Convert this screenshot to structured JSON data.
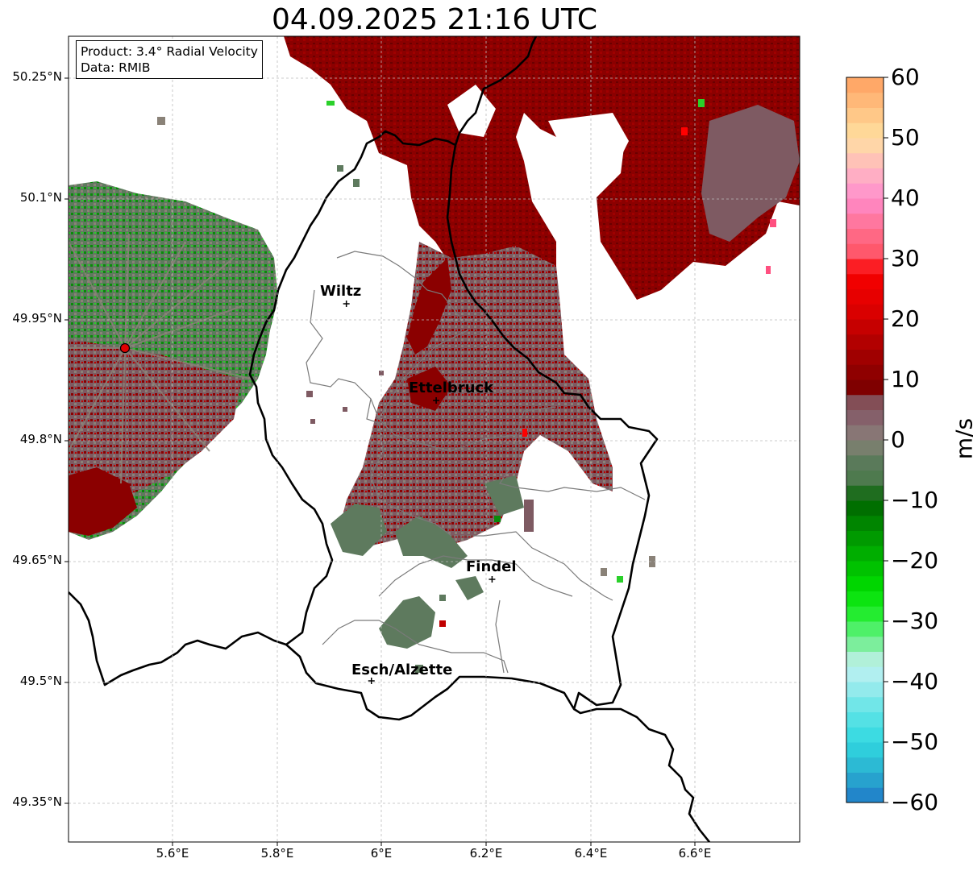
{
  "title": "04.09.2025 21:16 UTC",
  "info": {
    "product": "Product: 3.4° Radial Velocity",
    "source": "Data: RMIB"
  },
  "axes": {
    "lat_ticks": [
      "50.25°N",
      "50.1°N",
      "49.95°N",
      "49.8°N",
      "49.65°N",
      "49.5°N",
      "49.35°N"
    ],
    "lon_ticks": [
      "5.6°E",
      "5.8°E",
      "6°E",
      "6.2°E",
      "6.4°E",
      "6.6°E"
    ],
    "lat_range": [
      49.3,
      50.3
    ],
    "lon_range": [
      5.4,
      6.8
    ],
    "grid": true
  },
  "cities": [
    {
      "name": "Wiltz",
      "lat": 49.968,
      "lon": 5.932
    },
    {
      "name": "Ettelbruck",
      "lat": 49.848,
      "lon": 6.104
    },
    {
      "name": "Findel",
      "lat": 49.626,
      "lon": 6.211
    },
    {
      "name": "Esch/Alzette",
      "lat": 49.5,
      "lon": 5.98
    }
  ],
  "radar_site": {
    "lat": 49.915,
    "lon": 5.505,
    "color": "#e00000"
  },
  "colorbar": {
    "label": "m/s",
    "min": -60,
    "max": 60,
    "ticks": [
      "60",
      "50",
      "40",
      "30",
      "20",
      "10",
      "0",
      "−10",
      "−20",
      "−30",
      "−40",
      "−50",
      "−60"
    ],
    "stops": [
      {
        "v": -60,
        "c": "#1f78c8"
      },
      {
        "v": -55,
        "c": "#2ab0d0"
      },
      {
        "v": -50,
        "c": "#30d8e0"
      },
      {
        "v": -45,
        "c": "#60e4e6"
      },
      {
        "v": -40,
        "c": "#a4ecee"
      },
      {
        "v": -37,
        "c": "#c4f2f2"
      },
      {
        "v": -35,
        "c": "#90ecb0"
      },
      {
        "v": -32,
        "c": "#60f080"
      },
      {
        "v": -30,
        "c": "#30f040"
      },
      {
        "v": -25,
        "c": "#00e000"
      },
      {
        "v": -20,
        "c": "#00b800"
      },
      {
        "v": -15,
        "c": "#009000"
      },
      {
        "v": -10,
        "c": "#006400"
      },
      {
        "v": -7,
        "c": "#4a7a4a"
      },
      {
        "v": -3,
        "c": "#5e7a5e"
      },
      {
        "v": 0,
        "c": "#8a8278"
      },
      {
        "v": 3,
        "c": "#866670"
      },
      {
        "v": 7,
        "c": "#824850"
      },
      {
        "v": 8,
        "c": "#7a0000"
      },
      {
        "v": 15,
        "c": "#a80000"
      },
      {
        "v": 22,
        "c": "#e00000"
      },
      {
        "v": 28,
        "c": "#f80000"
      },
      {
        "v": 30,
        "c": "#ff5060"
      },
      {
        "v": 35,
        "c": "#ff7090"
      },
      {
        "v": 40,
        "c": "#ff8ccc"
      },
      {
        "v": 43,
        "c": "#ffa8c8"
      },
      {
        "v": 46,
        "c": "#ffc0b8"
      },
      {
        "v": 50,
        "c": "#ffe0a0"
      },
      {
        "v": 55,
        "c": "#ffc080"
      },
      {
        "v": 60,
        "c": "#ffa060"
      }
    ]
  },
  "colors": {
    "outbound_strong": "#8b0000",
    "outbound_weak": "#7e5a62",
    "near_zero": "#8a8278",
    "inbound_weak": "#5e7a5e",
    "inbound_strong": "#0a8a0a",
    "border": "#000000",
    "admin": "#7a7a7a"
  }
}
